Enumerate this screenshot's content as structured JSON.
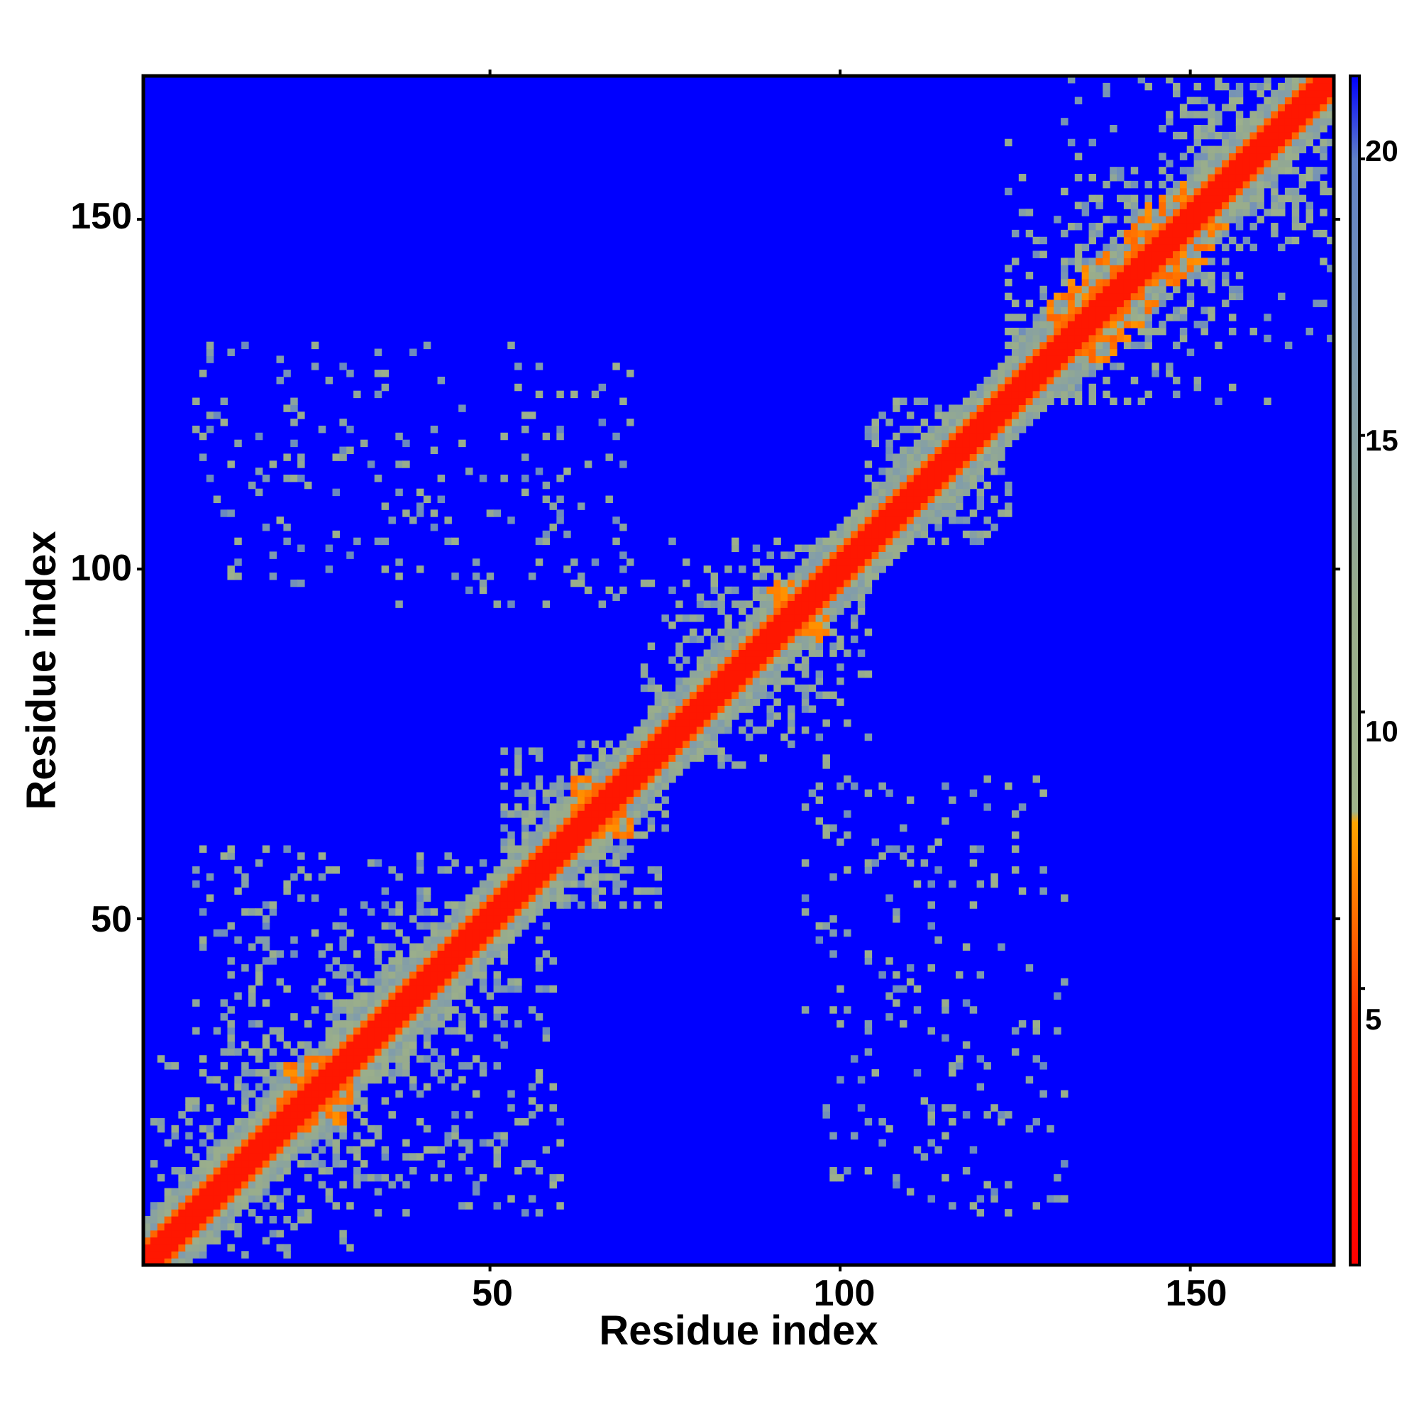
{
  "chart_data": {
    "type": "heatmap",
    "title": "",
    "xlabel": "Residue index",
    "ylabel": "Residue index",
    "n_residues": 170,
    "xlim": [
      1,
      170
    ],
    "ylim": [
      1,
      170
    ],
    "x_ticks": [
      50,
      100,
      150
    ],
    "y_ticks": [
      50,
      100,
      150
    ],
    "x_tick_labels": [
      "50",
      "100",
      "150"
    ],
    "y_tick_labels": [
      "50",
      "100",
      "150"
    ],
    "colorbar": {
      "range": [
        0,
        21.5
      ],
      "ticks": [
        5,
        10,
        15,
        20
      ],
      "tick_labels": [
        "5",
        "10",
        "15",
        "20"
      ],
      "stops": [
        {
          "value": 0,
          "color": "#ff0000"
        },
        {
          "value": 4.5,
          "color": "#ff3300"
        },
        {
          "value": 8.0,
          "color": "#ffa500"
        },
        {
          "value": 8.2,
          "color": "#a0b48c"
        },
        {
          "value": 12,
          "color": "#98ac8c"
        },
        {
          "value": 16,
          "color": "#809cac"
        },
        {
          "value": 20,
          "color": "#6080c8"
        },
        {
          "value": 21.5,
          "color": "#0000ff"
        }
      ]
    },
    "background_color": "#0000ff",
    "contact_map": {
      "diagonal_width_residues": 2,
      "diagonal_value": 2,
      "orange_band_residues": 3,
      "orange_band_value": 6,
      "near_diagonal_value": 11,
      "dense_blocks": [
        {
          "x": [
            2,
            32
          ],
          "y": [
            2,
            32
          ],
          "density": 0.55
        },
        {
          "x": [
            28,
            50
          ],
          "y": [
            28,
            52
          ],
          "density": 0.7
        },
        {
          "x": [
            52,
            75
          ],
          "y": [
            52,
            75
          ],
          "density": 0.55
        },
        {
          "x": [
            72,
            104
          ],
          "y": [
            72,
            104
          ],
          "density": 0.6
        },
        {
          "x": [
            104,
            124
          ],
          "y": [
            104,
            124
          ],
          "density": 0.55
        },
        {
          "x": [
            124,
            170
          ],
          "y": [
            124,
            170
          ],
          "density": 0.6
        }
      ],
      "orange_patches": [
        {
          "x": [
            20,
            30
          ],
          "y": [
            20,
            30
          ]
        },
        {
          "x": [
            62,
            70
          ],
          "y": [
            62,
            70
          ]
        },
        {
          "x": [
            90,
            98
          ],
          "y": [
            90,
            98
          ]
        },
        {
          "x": [
            130,
            155
          ],
          "y": [
            130,
            155
          ]
        }
      ],
      "off_diagonal_regions": [
        {
          "x": [
            8,
            70
          ],
          "y": [
            95,
            132
          ],
          "density": 0.22
        },
        {
          "x": [
            86,
            132
          ],
          "y": [
            6,
            65
          ],
          "density": 0.22
        },
        {
          "x": [
            8,
            50
          ],
          "y": [
            1,
            60
          ],
          "density": 0.35
        },
        {
          "x": [
            90,
            150
          ],
          "y": [
            30,
            100
          ],
          "density": 0.08
        }
      ]
    }
  }
}
